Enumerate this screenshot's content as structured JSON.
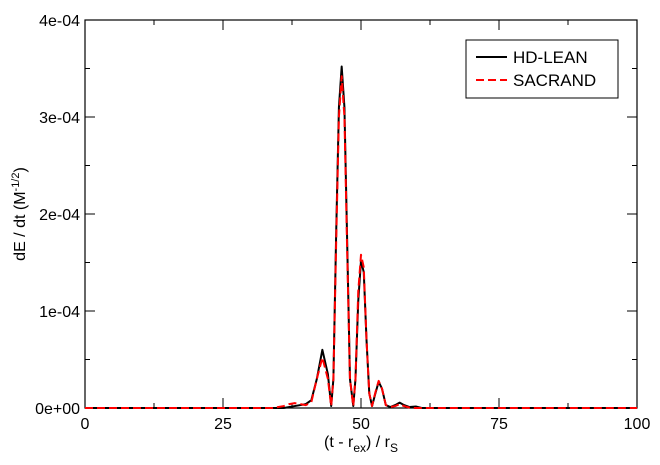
{
  "chart_data": {
    "type": "line",
    "title": "",
    "xlabel": {
      "main": "(t - r",
      "sub1": "ex",
      "mid": ") / r",
      "sub2": "S"
    },
    "ylabel": {
      "main": "dE / dt (M",
      "sup": "-1/2",
      "end": ")"
    },
    "xlim": [
      0,
      100
    ],
    "ylim": [
      0,
      0.0004
    ],
    "xticks": [
      {
        "value": 0,
        "label": "0"
      },
      {
        "value": 25,
        "label": "25"
      },
      {
        "value": 50,
        "label": "50"
      },
      {
        "value": 75,
        "label": "75"
      },
      {
        "value": 100,
        "label": "100"
      }
    ],
    "yticks": [
      {
        "value": 0,
        "label": "0e+00"
      },
      {
        "value": 0.0001,
        "label": "1e-04"
      },
      {
        "value": 0.0002,
        "label": "2e-04"
      },
      {
        "value": 0.0003,
        "label": "3e-04"
      },
      {
        "value": 0.0004,
        "label": "4e-04"
      }
    ],
    "grid": false,
    "legend_position": "top-right",
    "series": [
      {
        "name": "HD-LEAN",
        "color": "#000000",
        "style": "solid",
        "points": [
          [
            0,
            0
          ],
          [
            36,
            0
          ],
          [
            38,
            2e-06
          ],
          [
            40,
            4e-06
          ],
          [
            41,
            8e-06
          ],
          [
            42,
            3e-05
          ],
          [
            43,
            6e-05
          ],
          [
            44,
            3.5e-05
          ],
          [
            44.6,
            2e-06
          ],
          [
            45,
            3e-05
          ],
          [
            45.5,
            0.00018
          ],
          [
            46,
            0.00031
          ],
          [
            46.5,
            0.000352
          ],
          [
            47,
            0.00031
          ],
          [
            47.5,
            0.00017
          ],
          [
            48,
            3e-05
          ],
          [
            48.6,
            2e-06
          ],
          [
            49,
            3e-05
          ],
          [
            49.5,
            0.00011
          ],
          [
            50,
            0.000152
          ],
          [
            50.5,
            0.00014
          ],
          [
            51,
            7e-05
          ],
          [
            51.5,
            1.5e-05
          ],
          [
            52,
            2e-06
          ],
          [
            52.6,
            1.5e-05
          ],
          [
            53.2,
            2.7e-05
          ],
          [
            53.8,
            2e-05
          ],
          [
            54.5,
            3e-06
          ],
          [
            55.3,
            1e-06
          ],
          [
            56.2,
            3e-06
          ],
          [
            57,
            5.5e-06
          ],
          [
            57.8,
            3e-06
          ],
          [
            58.8,
            1e-06
          ],
          [
            60,
            1.5e-06
          ],
          [
            61,
            0
          ],
          [
            100,
            0
          ]
        ]
      },
      {
        "name": "SACRAND",
        "color": "#ff0000",
        "style": "dashed",
        "points": [
          [
            0,
            0
          ],
          [
            34,
            0
          ],
          [
            36,
            2e-06
          ],
          [
            37,
            4e-06
          ],
          [
            38,
            5e-06
          ],
          [
            39,
            4e-06
          ],
          [
            40,
            3e-06
          ],
          [
            41,
            6e-06
          ],
          [
            42,
            3e-05
          ],
          [
            43,
            5.2e-05
          ],
          [
            44,
            3e-05
          ],
          [
            44.6,
            2e-06
          ],
          [
            45,
            3e-05
          ],
          [
            45.5,
            0.00017
          ],
          [
            46,
            0.0003
          ],
          [
            46.5,
            0.000342
          ],
          [
            47,
            0.0003
          ],
          [
            47.5,
            0.00016
          ],
          [
            48,
            3e-05
          ],
          [
            48.6,
            2e-06
          ],
          [
            49,
            3e-05
          ],
          [
            49.5,
            0.00012
          ],
          [
            50,
            0.000158
          ],
          [
            50.5,
            0.000145
          ],
          [
            51,
            7e-05
          ],
          [
            51.5,
            1.5e-05
          ],
          [
            52,
            2e-06
          ],
          [
            52.6,
            1.6e-05
          ],
          [
            53.2,
            2.8e-05
          ],
          [
            53.8,
            2e-05
          ],
          [
            54.5,
            3e-06
          ],
          [
            55.3,
            1e-06
          ],
          [
            56.2,
            2e-06
          ],
          [
            57,
            4e-06
          ],
          [
            57.8,
            2e-06
          ],
          [
            59,
            0
          ],
          [
            100,
            0
          ]
        ]
      }
    ]
  }
}
